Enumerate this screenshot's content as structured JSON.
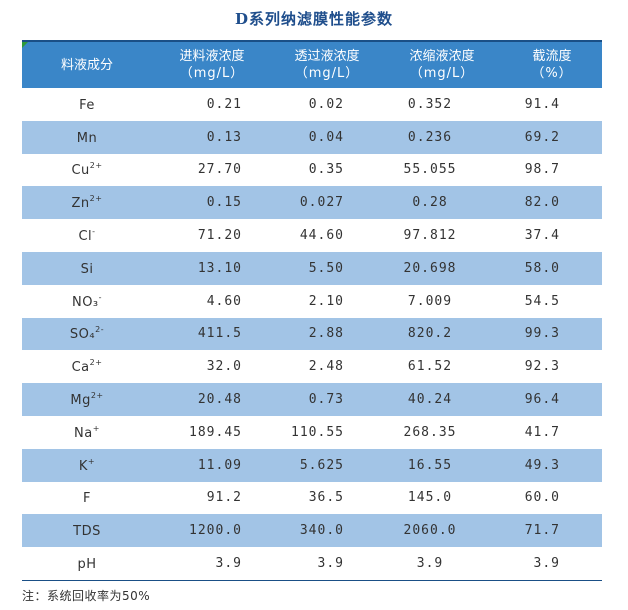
{
  "title": "D系列纳滤膜性能参数",
  "header": {
    "col0": "料液成分",
    "col1": "进料液浓度",
    "col1_unit": "（mg/L）",
    "col2": "透过液浓度",
    "col2_unit": "（mg/L）",
    "col3": "浓缩液浓度",
    "col3_unit": "（mg/L）",
    "col4": "截流度",
    "col4_unit": "（%）"
  },
  "rows": [
    {
      "name": "Fe",
      "sup": "",
      "feed": "0.21",
      "permeate": "0.02",
      "concentrate": "0.352",
      "rejection": "91.4"
    },
    {
      "name": "Mn",
      "sup": "",
      "feed": "0.13",
      "permeate": "0.04",
      "concentrate": "0.236",
      "rejection": "69.2"
    },
    {
      "name": "Cu",
      "sup": "2+",
      "feed": "27.70",
      "permeate": "0.35",
      "concentrate": "55.055",
      "rejection": "98.7"
    },
    {
      "name": "Zn",
      "sup": "2+",
      "feed": "0.15",
      "permeate": "0.027",
      "concentrate": "0.28",
      "rejection": "82.0"
    },
    {
      "name": "Cl",
      "sup": "-",
      "feed": "71.20",
      "permeate": "44.60",
      "concentrate": "97.812",
      "rejection": "37.4"
    },
    {
      "name": "Si",
      "sup": "",
      "feed": "13.10",
      "permeate": "5.50",
      "concentrate": "20.698",
      "rejection": "58.0"
    },
    {
      "name": "NO₃",
      "sup": "-",
      "feed": "4.60",
      "permeate": "2.10",
      "concentrate": "7.009",
      "rejection": "54.5"
    },
    {
      "name": "SO₄",
      "sup": "2-",
      "feed": "411.5",
      "permeate": "2.88",
      "concentrate": "820.2",
      "rejection": "99.3"
    },
    {
      "name": "Ca",
      "sup": "2+",
      "feed": "32.0",
      "permeate": "2.48",
      "concentrate": "61.52",
      "rejection": "92.3"
    },
    {
      "name": "Mg",
      "sup": "2+",
      "feed": "20.48",
      "permeate": "0.73",
      "concentrate": "40.24",
      "rejection": "96.4"
    },
    {
      "name": "Na",
      "sup": "+",
      "feed": "189.45",
      "permeate": "110.55",
      "concentrate": "268.35",
      "rejection": "41.7"
    },
    {
      "name": "K",
      "sup": "+",
      "feed": "11.09",
      "permeate": "5.625",
      "concentrate": "16.55",
      "rejection": "49.3"
    },
    {
      "name": "F",
      "sup": "",
      "feed": "91.2",
      "permeate": "36.5",
      "concentrate": "145.0",
      "rejection": "60.0"
    },
    {
      "name": "TDS",
      "sup": "",
      "feed": "1200.0",
      "permeate": "340.0",
      "concentrate": "2060.0",
      "rejection": "71.7"
    },
    {
      "name": "pH",
      "sup": "",
      "feed": "3.9",
      "permeate": "3.9",
      "concentrate": "3.9",
      "rejection": "3.9"
    }
  ],
  "note": "注：系统回收率为50%",
  "colors": {
    "header_bg": "#3a86c8",
    "alt_row": "#a2c4e6",
    "title": "#1f4e8c"
  }
}
